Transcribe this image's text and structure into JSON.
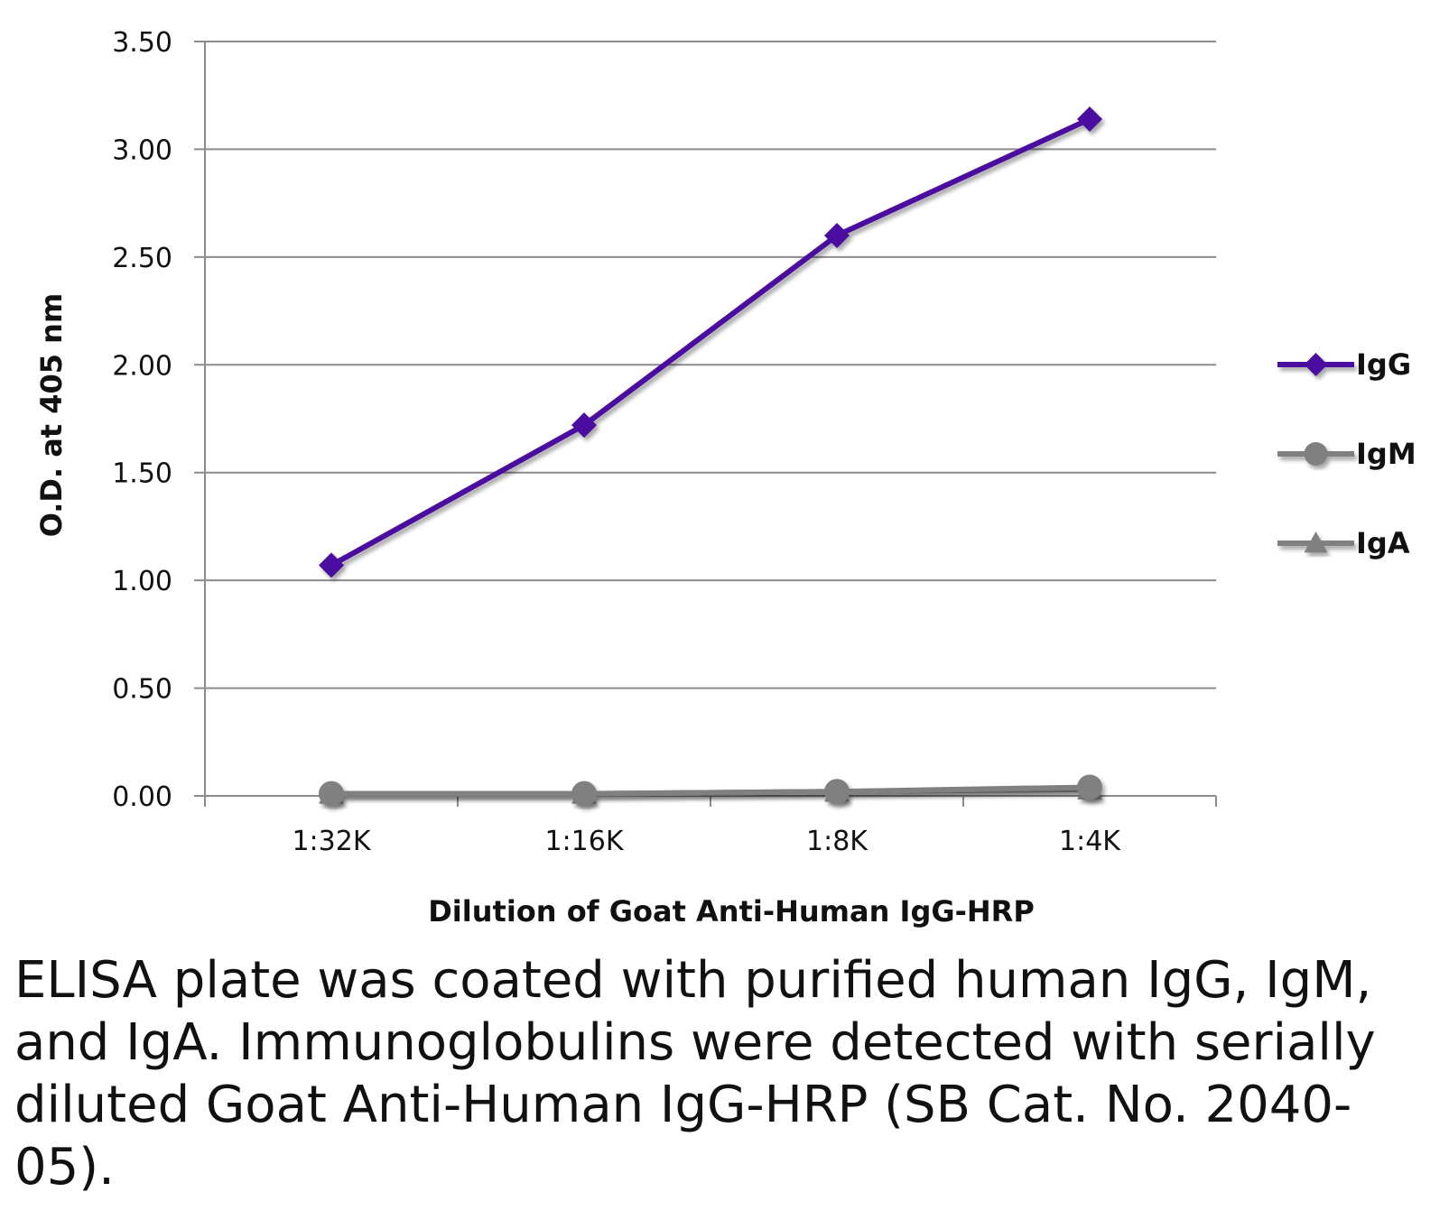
{
  "chart_data": {
    "type": "line",
    "categories": [
      "1:32K",
      "1:16K",
      "1:8K",
      "1:4K"
    ],
    "series": [
      {
        "name": "IgG",
        "values": [
          1.07,
          1.72,
          2.6,
          3.14
        ],
        "color": "#4b0fa0",
        "marker": "diamond"
      },
      {
        "name": "IgM",
        "values": [
          0.01,
          0.01,
          0.02,
          0.04
        ],
        "color": "#808080",
        "marker": "circle"
      },
      {
        "name": "IgA",
        "values": [
          0.01,
          0.01,
          0.02,
          0.03
        ],
        "color": "#808080",
        "marker": "triangle"
      }
    ],
    "yticks": [
      "0.00",
      "0.50",
      "1.00",
      "1.50",
      "2.00",
      "2.50",
      "3.00",
      "3.50"
    ],
    "ylim": [
      0,
      3.5
    ],
    "xlabel": "Dilution of Goat Anti-Human IgG-HRP",
    "ylabel": "O.D. at 405 nm",
    "legend_position": "right",
    "grid": true
  },
  "caption": "ELISA plate was coated with purified human IgG, IgM, and IgA.  Immunoglobulins were detected with serially diluted Goat Anti-Human IgG-HRP (SB Cat. No. 2040-05)."
}
